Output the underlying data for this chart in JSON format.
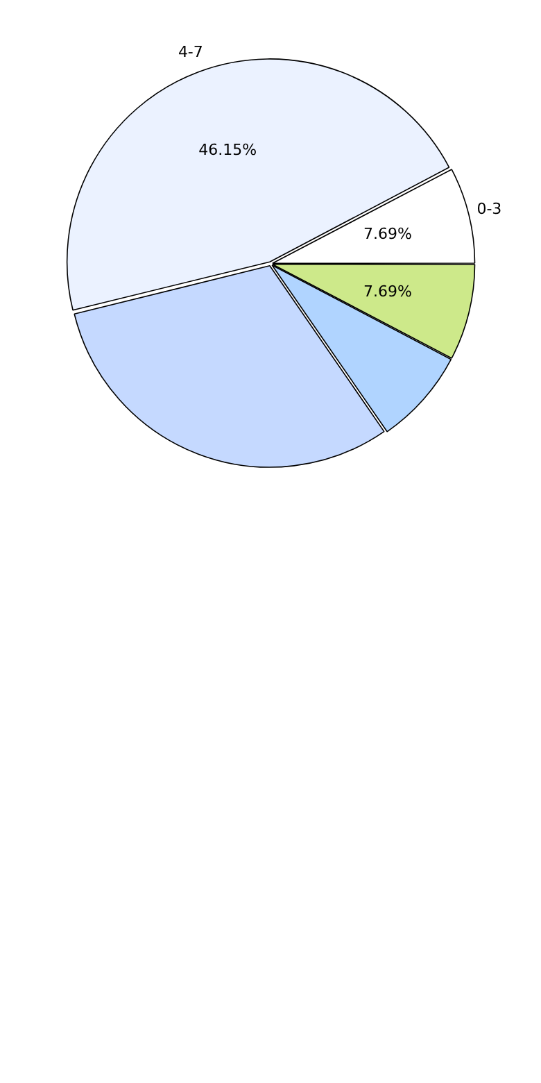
{
  "chart_data": {
    "type": "pie",
    "categories": [
      null,
      null,
      null,
      "4-7",
      "0-3"
    ],
    "values": [
      7.69,
      7.69,
      30.77,
      46.15,
      7.69
    ],
    "colors": [
      "#cde98a",
      "#b0d4ff",
      "#c5d9ff",
      "#ebf2ff",
      "#ffffff"
    ],
    "value_labels": [
      "7.69%",
      null,
      null,
      "46.15%",
      "7.69%"
    ],
    "legend": false
  }
}
